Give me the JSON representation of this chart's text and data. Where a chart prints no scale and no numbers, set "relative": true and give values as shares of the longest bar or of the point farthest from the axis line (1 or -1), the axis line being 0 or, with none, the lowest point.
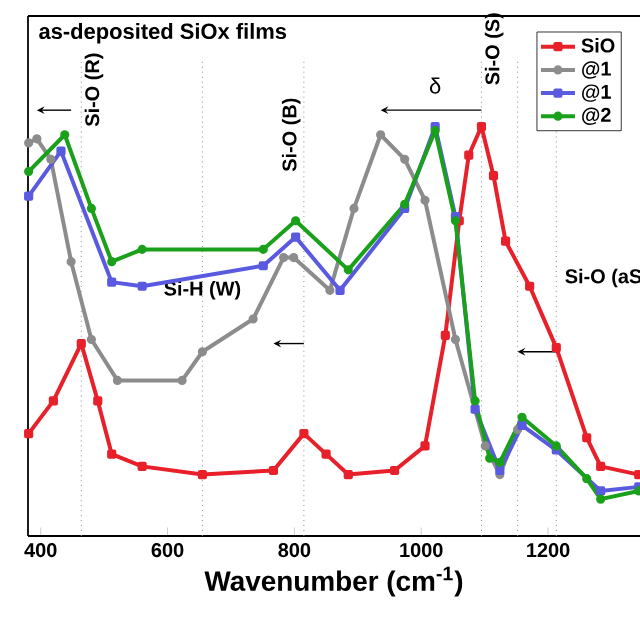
{
  "chart_data": {
    "type": "line",
    "title": "as-deposited SiOx films",
    "xlabel": "Wavenumber (cm$^{-1}$)",
    "relative": true,
    "xlim": [
      380,
      1345
    ],
    "xticks": [
      400,
      600,
      800,
      1000,
      1200
    ],
    "legend": "top right",
    "grid": false,
    "line_style": "solid",
    "annotations": [
      "δ"
    ],
    "ref_lines": [
      {
        "axis": "x",
        "value": 464,
        "label": "Si-O (R)",
        "color": "#8a8a9a",
        "line_style": "dotted"
      },
      {
        "axis": "x",
        "value": 655,
        "label": "Si-H (W)",
        "color": "#8a8a9a",
        "line_style": "dotted"
      },
      {
        "axis": "x",
        "value": 815,
        "label": "Si-O (B)",
        "color": "#8a8a9a",
        "line_style": "dotted"
      },
      {
        "axis": "x",
        "value": 1095,
        "label": "Si-O (S)",
        "color": "#8a8a9a",
        "line_style": "dotted"
      },
      {
        "axis": "x",
        "value": 1152,
        "label": null,
        "color": "#8a8a9a",
        "line_style": "dotted"
      },
      {
        "axis": "x",
        "value": 1213,
        "label": "Si-O (aS",
        "color": "#8a8a9a",
        "line_style": "dotted"
      }
    ],
    "series": [
      {
        "name": "SiO",
        "color": "#e8202a",
        "marker": "square",
        "x": [
          381,
          420,
          464,
          490,
          512,
          560,
          655,
          767,
          815,
          850,
          885,
          958,
          1006,
          1038,
          1060,
          1075,
          1095,
          1114,
          1133,
          1171,
          1213,
          1261,
          1283,
          1343
        ],
        "values": [
          0.25,
          0.33,
          0.47,
          0.33,
          0.2,
          0.17,
          0.15,
          0.16,
          0.25,
          0.2,
          0.15,
          0.16,
          0.22,
          0.49,
          0.77,
          0.93,
          1.0,
          0.88,
          0.72,
          0.61,
          0.46,
          0.24,
          0.17,
          0.15
        ]
      },
      {
        "name": "@1",
        "color": "#8c8c8c",
        "marker": "circle",
        "x": [
          381,
          394,
          416,
          448,
          480,
          521,
          623,
          655,
          735,
          783,
          799,
          856,
          894,
          936,
          974,
          1006,
          1054,
          1101,
          1124,
          1152
        ],
        "values": [
          0.96,
          0.97,
          0.92,
          0.67,
          0.48,
          0.38,
          0.38,
          0.45,
          0.53,
          0.68,
          0.68,
          0.6,
          0.8,
          0.98,
          0.92,
          0.82,
          0.48,
          0.22,
          0.15,
          0.26
        ]
      },
      {
        "name": "@1",
        "color": "#5a5ae0",
        "marker": "square",
        "x": [
          381,
          432,
          512,
          560,
          751,
          802,
          872,
          974,
          1022,
          1054,
          1085,
          1124,
          1159,
          1213,
          1283,
          1343
        ],
        "values": [
          0.83,
          0.94,
          0.62,
          0.61,
          0.66,
          0.73,
          0.6,
          0.8,
          1.0,
          0.78,
          0.31,
          0.16,
          0.27,
          0.21,
          0.11,
          0.12
        ]
      },
      {
        "name": "@2",
        "color": "#1aa01a",
        "marker": "circle",
        "x": [
          381,
          438,
          480,
          512,
          560,
          751,
          802,
          885,
          974,
          1022,
          1054,
          1085,
          1108,
          1124,
          1159,
          1213,
          1261,
          1283,
          1343
        ],
        "values": [
          0.89,
          0.98,
          0.8,
          0.67,
          0.7,
          0.7,
          0.77,
          0.65,
          0.81,
          0.99,
          0.77,
          0.33,
          0.19,
          0.18,
          0.29,
          0.22,
          0.14,
          0.09,
          0.11
        ]
      }
    ]
  }
}
